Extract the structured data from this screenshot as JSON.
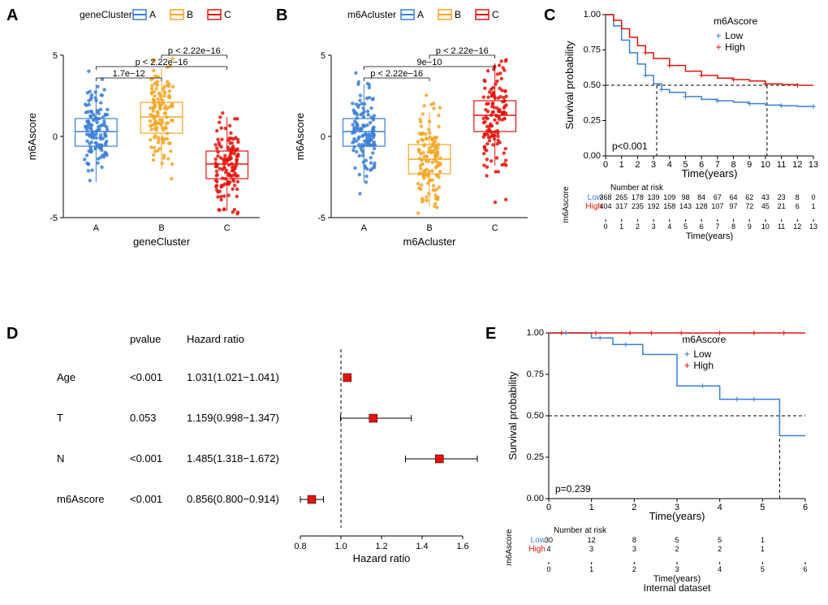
{
  "colors": {
    "A": "#3a7fd5",
    "B": "#f5a623",
    "C": "#e3120b",
    "low": "#3a7fd5",
    "high": "#e3120b",
    "forest_fill": "#e3120b",
    "bg": "#ffffff",
    "grid": "#e0e0e0"
  },
  "panelA": {
    "label": "A",
    "x_label": "geneCluster",
    "y_label": "m6Ascore",
    "legend_title": "geneCluster",
    "categories": [
      "A",
      "B",
      "C"
    ],
    "ylim": [
      -5,
      5
    ],
    "yticks": [
      -5,
      0,
      5
    ],
    "jitter_width": 0.35,
    "point_r": 2.2,
    "point_alpha": 0.85,
    "box": {
      "A": {
        "q1": -0.6,
        "median": 0.3,
        "q3": 1.1,
        "wlo": -2.8,
        "whi": 3.2
      },
      "B": {
        "q1": 0.2,
        "median": 1.2,
        "q3": 2.1,
        "wlo": -2.0,
        "whi": 4.2
      },
      "C": {
        "q1": -2.6,
        "median": -1.7,
        "q3": -0.9,
        "wlo": -4.6,
        "whi": 1.2
      }
    },
    "n_points": {
      "A": 130,
      "B": 130,
      "C": 130
    },
    "pvals": [
      {
        "from": "A",
        "to": "B",
        "label": "1.7e−12",
        "y": 3.6
      },
      {
        "from": "A",
        "to": "C",
        "label": "p < 2.22e−16",
        "y": 4.3
      },
      {
        "from": "B",
        "to": "C",
        "label": "p < 2.22e−16",
        "y": 5.0
      }
    ]
  },
  "panelB": {
    "label": "B",
    "x_label": "m6Acluster",
    "y_label": "m6Ascore",
    "legend_title": "m6Acluster",
    "categories": [
      "A",
      "B",
      "C"
    ],
    "ylim": [
      -5,
      5
    ],
    "yticks": [
      -5,
      0,
      5
    ],
    "jitter_width": 0.35,
    "point_r": 2.2,
    "point_alpha": 0.85,
    "box": {
      "A": {
        "q1": -0.6,
        "median": 0.3,
        "q3": 1.1,
        "wlo": -2.8,
        "whi": 3.2
      },
      "B": {
        "q1": -2.3,
        "median": -1.4,
        "q3": -0.5,
        "wlo": -4.3,
        "whi": 1.5
      },
      "C": {
        "q1": 0.3,
        "median": 1.3,
        "q3": 2.2,
        "wlo": -1.8,
        "whi": 4.5
      }
    },
    "n_points": {
      "A": 130,
      "B": 130,
      "C": 130
    },
    "pvals": [
      {
        "from": "A",
        "to": "B",
        "label": "p < 2.22e−16",
        "y": 3.6
      },
      {
        "from": "A",
        "to": "C",
        "label": "9e−10",
        "y": 4.3
      },
      {
        "from": "B",
        "to": "C",
        "label": "p < 2.22e−16",
        "y": 5.0
      }
    ]
  },
  "panelC": {
    "label": "C",
    "y_label": "Survival probability",
    "x_label": "Time(years)",
    "legend_title": "m6Ascore",
    "legend_items": [
      "Low",
      "High"
    ],
    "ylim": [
      0,
      1
    ],
    "yticks": [
      0,
      0.25,
      0.5,
      0.75,
      1
    ],
    "ytick_labels": [
      "0.00",
      "0.25",
      "0.50",
      "0.75",
      "1.00"
    ],
    "xlim": [
      0,
      13
    ],
    "xticks": [
      0,
      1,
      2,
      3,
      4,
      5,
      6,
      7,
      8,
      9,
      10,
      11,
      12,
      13
    ],
    "pval": "p<0.001",
    "ref_y": 0.5,
    "ref_x_low": 3.2,
    "ref_x_high": 10.1,
    "km_low": [
      [
        0,
        1
      ],
      [
        0.5,
        0.92
      ],
      [
        1,
        0.82
      ],
      [
        1.5,
        0.73
      ],
      [
        2,
        0.65
      ],
      [
        2.5,
        0.57
      ],
      [
        3,
        0.51
      ],
      [
        3.5,
        0.47
      ],
      [
        4,
        0.45
      ],
      [
        5,
        0.42
      ],
      [
        6,
        0.4
      ],
      [
        7,
        0.39
      ],
      [
        8,
        0.38
      ],
      [
        9,
        0.37
      ],
      [
        10,
        0.36
      ],
      [
        11,
        0.355
      ],
      [
        12,
        0.35
      ],
      [
        13,
        0.35
      ]
    ],
    "km_high": [
      [
        0,
        1
      ],
      [
        0.5,
        0.96
      ],
      [
        1,
        0.9
      ],
      [
        1.5,
        0.84
      ],
      [
        2,
        0.78
      ],
      [
        2.5,
        0.73
      ],
      [
        3,
        0.69
      ],
      [
        4,
        0.64
      ],
      [
        5,
        0.6
      ],
      [
        6,
        0.57
      ],
      [
        7,
        0.55
      ],
      [
        8,
        0.54
      ],
      [
        9,
        0.53
      ],
      [
        10,
        0.51
      ],
      [
        11,
        0.505
      ],
      [
        12,
        0.5
      ],
      [
        13,
        0.5
      ]
    ],
    "risk_title": "Number at risk",
    "risk_y_label": "m6Ascore",
    "risk_rows": [
      {
        "name": "Low",
        "counts": [
          "368",
          "265",
          "178",
          "139",
          "109",
          "98",
          "84",
          "67",
          "64",
          "62",
          "43",
          "23",
          "8",
          "0"
        ]
      },
      {
        "name": "High",
        "counts": [
          "404",
          "317",
          "235",
          "192",
          "158",
          "143",
          "128",
          "107",
          "97",
          "72",
          "45",
          "21",
          "6",
          "1"
        ]
      }
    ]
  },
  "panelD": {
    "label": "D",
    "columns": [
      "pvalue",
      "Hazard ratio"
    ],
    "x_label": "Hazard ratio",
    "xlim": [
      0.8,
      1.6
    ],
    "xticks": [
      0.8,
      1.0,
      1.2,
      1.4,
      1.6
    ],
    "ref_x": 1.0,
    "point_size": 10,
    "rows": [
      {
        "name": "Age",
        "pvalue": "<0.001",
        "hr_text": "1.031(1.021−1.041)",
        "hr": 1.031,
        "lo": 1.021,
        "hi": 1.041
      },
      {
        "name": "T",
        "pvalue": "0.053",
        "hr_text": "1.159(0.998−1.347)",
        "hr": 1.159,
        "lo": 0.998,
        "hi": 1.347
      },
      {
        "name": "N",
        "pvalue": "<0.001",
        "hr_text": "1.485(1.318−1.672)",
        "hr": 1.485,
        "lo": 1.318,
        "hi": 1.672
      },
      {
        "name": "m6Ascore",
        "pvalue": "<0.001",
        "hr_text": "0.856(0.800−0.914)",
        "hr": 0.856,
        "lo": 0.8,
        "hi": 0.914
      }
    ]
  },
  "panelE": {
    "label": "E",
    "y_label": "Survival probability",
    "x_label": "Time(years)",
    "title_bottom": "Internal dataset",
    "legend_title": "m6Ascore",
    "legend_items": [
      "Low",
      "High"
    ],
    "ylim": [
      0,
      1
    ],
    "yticks": [
      0,
      0.25,
      0.5,
      0.75,
      1
    ],
    "ytick_labels": [
      "0.00",
      "0.25",
      "0.50",
      "0.75",
      "1.00"
    ],
    "xlim": [
      0,
      6
    ],
    "xticks": [
      0,
      1,
      2,
      3,
      4,
      5,
      6
    ],
    "pval": "p=0.239",
    "ref_y": 0.5,
    "ref_x_low": 5.4,
    "km_low": [
      [
        0,
        1
      ],
      [
        0.5,
        1
      ],
      [
        1,
        0.97
      ],
      [
        1.5,
        0.93
      ],
      [
        2,
        0.93
      ],
      [
        2.2,
        0.87
      ],
      [
        2.5,
        0.87
      ],
      [
        3,
        0.68
      ],
      [
        3.5,
        0.68
      ],
      [
        4,
        0.6
      ],
      [
        4.5,
        0.6
      ],
      [
        5,
        0.6
      ],
      [
        5.4,
        0.38
      ],
      [
        6,
        0.38
      ]
    ],
    "km_high": [
      [
        0,
        1
      ],
      [
        1,
        1
      ],
      [
        2,
        1
      ],
      [
        3,
        1
      ],
      [
        4,
        1
      ],
      [
        5,
        1
      ],
      [
        6,
        1
      ]
    ],
    "cross_low": [
      [
        0.4,
        1
      ],
      [
        1.2,
        0.97
      ],
      [
        1.8,
        0.93
      ],
      [
        3.6,
        0.68
      ],
      [
        4.4,
        0.6
      ],
      [
        4.8,
        0.6
      ]
    ],
    "cross_high": [
      [
        0.3,
        1
      ],
      [
        1.1,
        1
      ],
      [
        1.9,
        1
      ],
      [
        2.4,
        1
      ],
      [
        3.1,
        1
      ],
      [
        4.0,
        1
      ],
      [
        4.8,
        1
      ],
      [
        5.5,
        1
      ]
    ],
    "risk_title": "Number at risk",
    "risk_y_label": "m6Ascore",
    "risk_rows": [
      {
        "name": "Low",
        "counts": [
          "30",
          "12",
          "8",
          "5",
          "5",
          "1",
          ""
        ]
      },
      {
        "name": "High",
        "counts": [
          "4",
          "3",
          "3",
          "2",
          "2",
          "1",
          ""
        ]
      }
    ]
  }
}
